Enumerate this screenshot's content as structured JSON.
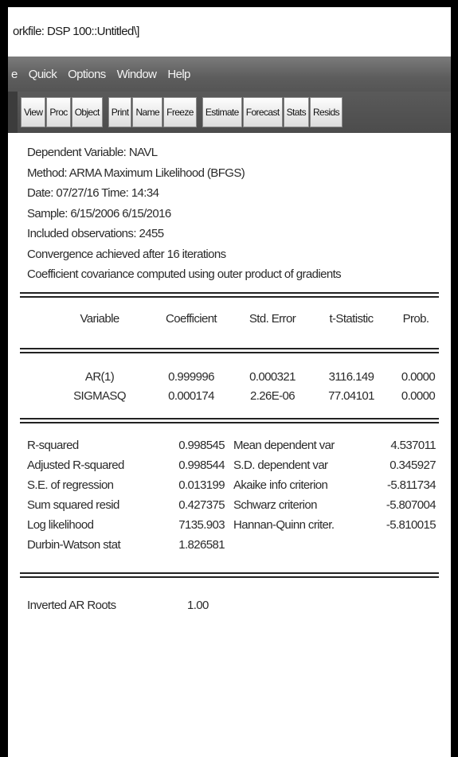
{
  "window": {
    "title": "orkfile: DSP 100::Untitled\\]"
  },
  "menu": {
    "items": [
      "e",
      "Quick",
      "Options",
      "Window",
      "Help"
    ]
  },
  "toolbar": {
    "buttons": [
      "View",
      "Proc",
      "Object",
      "Print",
      "Name",
      "Freeze",
      "Estimate",
      "Forecast",
      "Stats",
      "Resids"
    ]
  },
  "output": {
    "header": [
      "Dependent Variable: NAVL",
      "Method: ARMA Maximum Likelihood (BFGS)",
      "Date: 07/27/16   Time: 14:34",
      "Sample: 6/15/2006 6/15/2016",
      "Included observations: 2455",
      "Convergence achieved after 16 iterations",
      "Coefficient covariance computed using outer product of gradients"
    ],
    "coef_table": {
      "columns": [
        "Variable",
        "Coefficient",
        "Std. Error",
        "t-Statistic",
        "Prob."
      ],
      "rows": [
        [
          "AR(1)",
          "0.999996",
          "0.000321",
          "3116.149",
          "0.0000"
        ],
        [
          "SIGMASQ",
          "0.000174",
          "2.26E-06",
          "77.04101",
          "0.0000"
        ]
      ]
    },
    "stats": [
      [
        "R-squared",
        "0.998545",
        "Mean dependent var",
        "4.537011"
      ],
      [
        "Adjusted R-squared",
        "0.998544",
        "S.D. dependent var",
        "0.345927"
      ],
      [
        "S.E. of regression",
        "0.013199",
        "Akaike info criterion",
        "-5.811734"
      ],
      [
        "Sum squared resid",
        "0.427375",
        "Schwarz criterion",
        "-5.807004"
      ],
      [
        "Log likelihood",
        "7135.903",
        "Hannan-Quinn criter.",
        "-5.810015"
      ],
      [
        "Durbin-Watson stat",
        "1.826581",
        "",
        ""
      ]
    ],
    "roots": {
      "label": "Inverted AR Roots",
      "value": "1.00"
    }
  }
}
